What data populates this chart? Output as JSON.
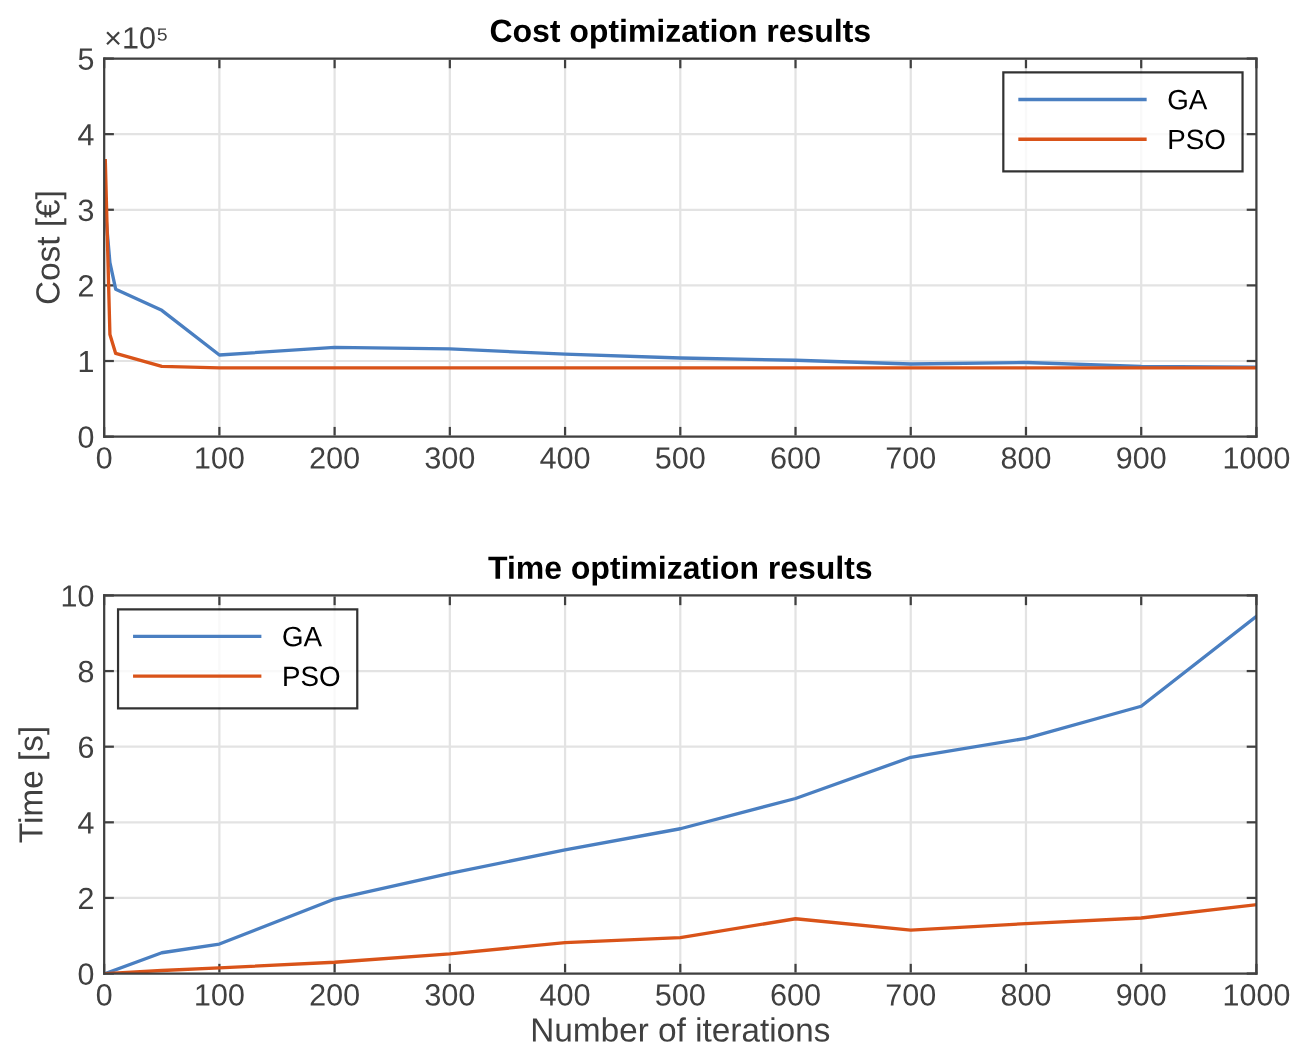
{
  "chart_data": [
    {
      "type": "line",
      "title": "Cost optimization results",
      "ylabel": "Cost [€]",
      "annotations": [
        "×10⁵"
      ],
      "xlim": [
        0,
        1000
      ],
      "xticks": [
        0,
        100,
        200,
        300,
        400,
        500,
        600,
        700,
        800,
        900,
        1000
      ],
      "ylim": [
        0,
        5
      ],
      "yticks": [
        0,
        1,
        2,
        3,
        4,
        5
      ],
      "grid": true,
      "legend": "top right",
      "series": [
        {
          "name": "GA",
          "color": "#4a7fc1",
          "x": [
            1,
            5,
            10,
            50,
            100,
            200,
            300,
            400,
            500,
            600,
            700,
            800,
            900,
            1000
          ],
          "values": [
            3.0,
            2.3,
            1.95,
            1.67,
            1.08,
            1.18,
            1.16,
            1.09,
            1.04,
            1.01,
            0.96,
            0.98,
            0.93,
            0.92
          ]
        },
        {
          "name": "PSO",
          "color": "#d95319",
          "x": [
            1,
            5,
            10,
            50,
            100,
            200,
            300,
            400,
            500,
            600,
            700,
            800,
            900,
            1000
          ],
          "values": [
            3.65,
            1.35,
            1.1,
            0.93,
            0.91,
            0.91,
            0.91,
            0.91,
            0.91,
            0.91,
            0.91,
            0.91,
            0.91,
            0.91
          ]
        }
      ]
    },
    {
      "type": "line",
      "title": "Time optimization results",
      "xlabel": "Number of iterations",
      "ylabel": "Time [s]",
      "xlim": [
        0,
        1000
      ],
      "xticks": [
        0,
        100,
        200,
        300,
        400,
        500,
        600,
        700,
        800,
        900,
        1000
      ],
      "ylim": [
        0,
        10
      ],
      "yticks": [
        0,
        2,
        4,
        6,
        8,
        10
      ],
      "grid": true,
      "legend": "top left",
      "series": [
        {
          "name": "GA",
          "color": "#4a7fc1",
          "x": [
            1,
            50,
            100,
            200,
            300,
            400,
            500,
            600,
            700,
            800,
            900,
            1000
          ],
          "values": [
            0,
            0.55,
            0.78,
            1.97,
            2.65,
            3.27,
            3.83,
            4.63,
            5.72,
            6.22,
            7.07,
            9.45
          ]
        },
        {
          "name": "PSO",
          "color": "#d95319",
          "x": [
            1,
            50,
            100,
            200,
            300,
            400,
            500,
            600,
            700,
            800,
            900,
            1000
          ],
          "values": [
            0,
            0.08,
            0.15,
            0.3,
            0.52,
            0.82,
            0.95,
            1.45,
            1.15,
            1.32,
            1.47,
            1.82
          ]
        }
      ]
    }
  ]
}
